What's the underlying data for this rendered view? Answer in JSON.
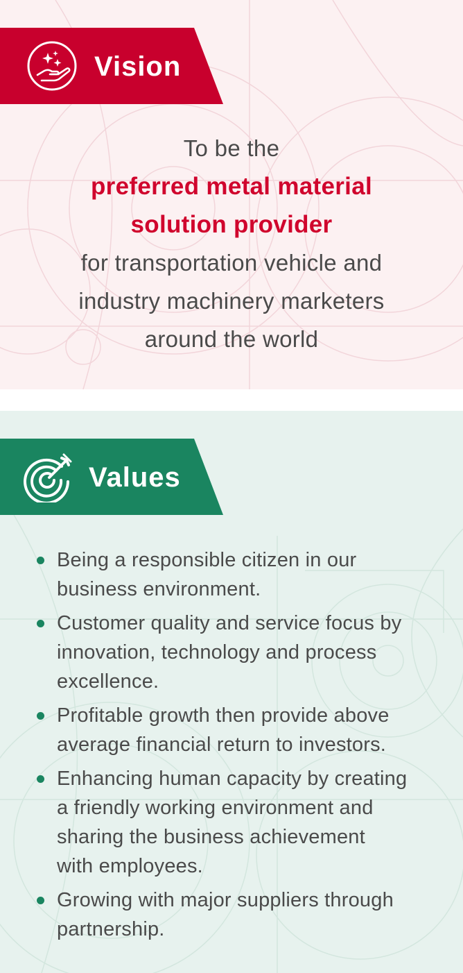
{
  "colors": {
    "vision_accent": "#c8002d",
    "vision_highlight": "#d0052d",
    "vision_background": "#fcf1f2",
    "values_accent": "#1a8560",
    "values_background": "#e7f2ee",
    "body_text": "#4a4a4a"
  },
  "vision": {
    "icon": "hand-sparkles-icon",
    "title": "Vision",
    "statement": {
      "intro": "To be the",
      "highlight_line_1": "preferred metal material",
      "highlight_line_2": "solution provider",
      "line_3": "for transportation vehicle and",
      "line_4": "industry machinery marketers",
      "line_5": "around the world"
    }
  },
  "values": {
    "icon": "target-arrow-icon",
    "title": "Values",
    "items": [
      {
        "lines": [
          "Being a responsible citizen in our",
          "business environment."
        ]
      },
      {
        "lines": [
          "Customer quality and service focus by",
          "innovation, technology and process",
          "excellence."
        ]
      },
      {
        "lines": [
          "Profitable growth then provide above",
          "average financial return to investors."
        ]
      },
      {
        "lines": [
          "Enhancing human capacity by creating",
          "a friendly working environment and",
          "sharing the business achievement",
          "with employees."
        ]
      },
      {
        "lines": [
          "Growing with major suppliers through",
          "partnership."
        ]
      }
    ]
  }
}
